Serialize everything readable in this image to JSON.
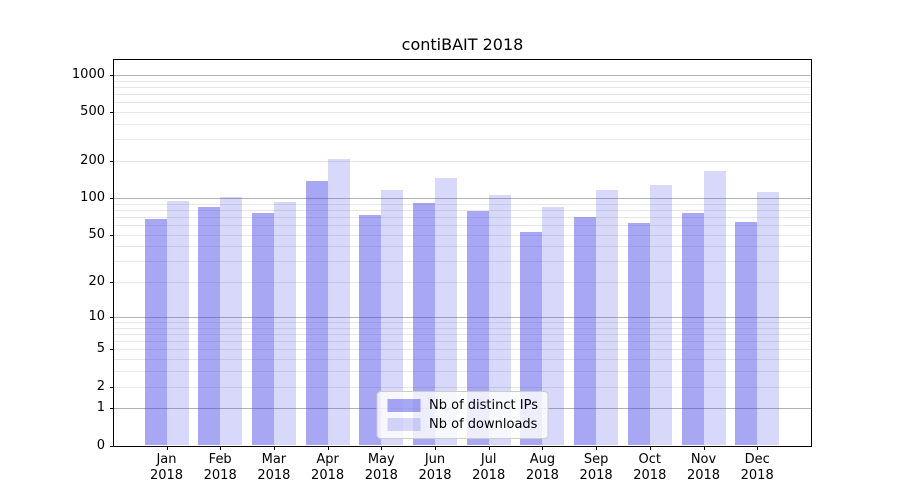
{
  "chart_data": {
    "type": "bar",
    "title": "contiBAIT 2018",
    "categories": [
      "Jan",
      "Feb",
      "Mar",
      "Apr",
      "May",
      "Jun",
      "Jul",
      "Aug",
      "Sep",
      "Oct",
      "Nov",
      "Dec"
    ],
    "year_label": "2018",
    "series": [
      {
        "name": "Nb of distinct IPs",
        "fill": "rgba(60,60,230,0.45)",
        "approx_hex": "#a7a7f4",
        "values": [
          67,
          85,
          76,
          138,
          72,
          91,
          78,
          53,
          70,
          62,
          76,
          63
        ]
      },
      {
        "name": "Nb of downloads",
        "fill": "rgba(60,60,230,0.2)",
        "approx_hex": "#d8d8fa",
        "values": [
          95,
          101,
          92,
          209,
          117,
          146,
          106,
          84,
          117,
          127,
          166,
          112
        ]
      }
    ],
    "yscale": "log1p",
    "yticks": [
      1000,
      500,
      200,
      100,
      50,
      20,
      10,
      5,
      2,
      1,
      0
    ],
    "ylim": [
      0,
      1290
    ],
    "xlabel": "",
    "ylabel": "",
    "grid": "horizontal major and minor gridlines",
    "legend_position": "lower center"
  },
  "colors": {
    "background": "#ffffff",
    "spine": "#000000",
    "text": "#000000",
    "major_grid": "#b3b3b3",
    "minor_grid": "#e7e7e7",
    "legend_border": "#cccccc",
    "legend_bg": "rgba(255,255,255,0.8)"
  }
}
